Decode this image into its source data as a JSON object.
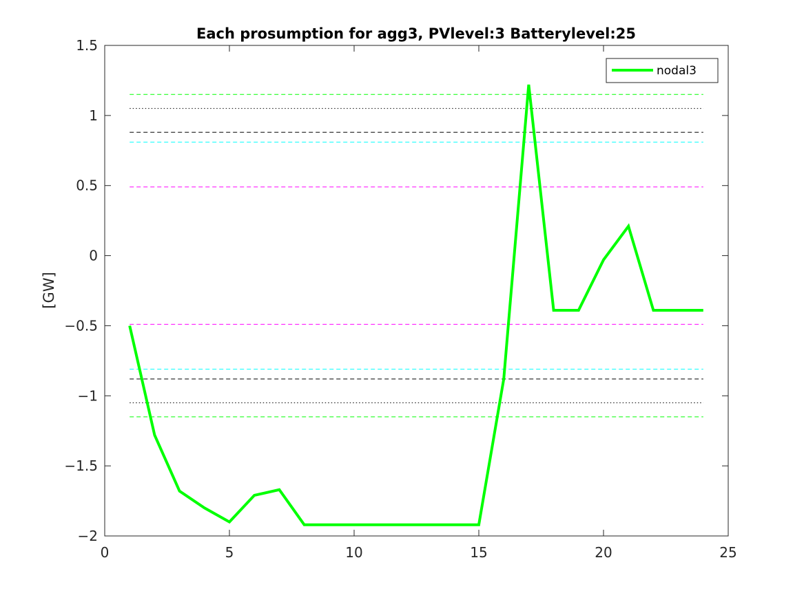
{
  "chart_data": {
    "type": "line",
    "title": "Each prosumption for agg3, PVlevel:3 Batterylevel:25",
    "xlabel": "",
    "ylabel": "[GW]",
    "xlim": [
      0,
      25
    ],
    "ylim": [
      -2,
      1.5
    ],
    "xticks": [
      0,
      5,
      10,
      15,
      20,
      25
    ],
    "yticks": [
      -2,
      -1.5,
      -1,
      -0.5,
      0,
      0.5,
      1,
      1.5
    ],
    "grid": false,
    "legend_position": "top-right",
    "series": [
      {
        "name": "nodal3",
        "color": "#00ff00",
        "x": [
          1,
          2,
          3,
          4,
          5,
          6,
          7,
          8,
          9,
          10,
          11,
          12,
          13,
          14,
          15,
          16,
          17,
          18,
          19,
          20,
          21,
          22,
          23,
          24
        ],
        "values": [
          -0.5,
          -1.28,
          -1.68,
          -1.8,
          -1.9,
          -1.71,
          -1.67,
          -1.92,
          -1.92,
          -1.92,
          -1.92,
          -1.92,
          -1.92,
          -1.92,
          -1.92,
          -0.88,
          1.22,
          -0.39,
          -0.39,
          -0.03,
          0.21,
          -0.39,
          -0.39,
          -0.39
        ]
      }
    ],
    "reference_lines": [
      {
        "y": 1.15,
        "color": "#00ff00",
        "style": "dashed"
      },
      {
        "y": 1.05,
        "color": "#000000",
        "style": "dotted"
      },
      {
        "y": 0.88,
        "color": "#000000",
        "style": "dashed"
      },
      {
        "y": 0.81,
        "color": "#00ffff",
        "style": "dashed"
      },
      {
        "y": 0.49,
        "color": "#ff00ff",
        "style": "dashed"
      },
      {
        "y": -0.49,
        "color": "#ff00ff",
        "style": "dashed"
      },
      {
        "y": -0.81,
        "color": "#00ffff",
        "style": "dashed"
      },
      {
        "y": -0.88,
        "color": "#000000",
        "style": "dashed"
      },
      {
        "y": -1.05,
        "color": "#000000",
        "style": "dotted"
      },
      {
        "y": -1.15,
        "color": "#00ff00",
        "style": "dashed"
      }
    ],
    "ref_line_x_range": [
      1,
      24
    ]
  }
}
